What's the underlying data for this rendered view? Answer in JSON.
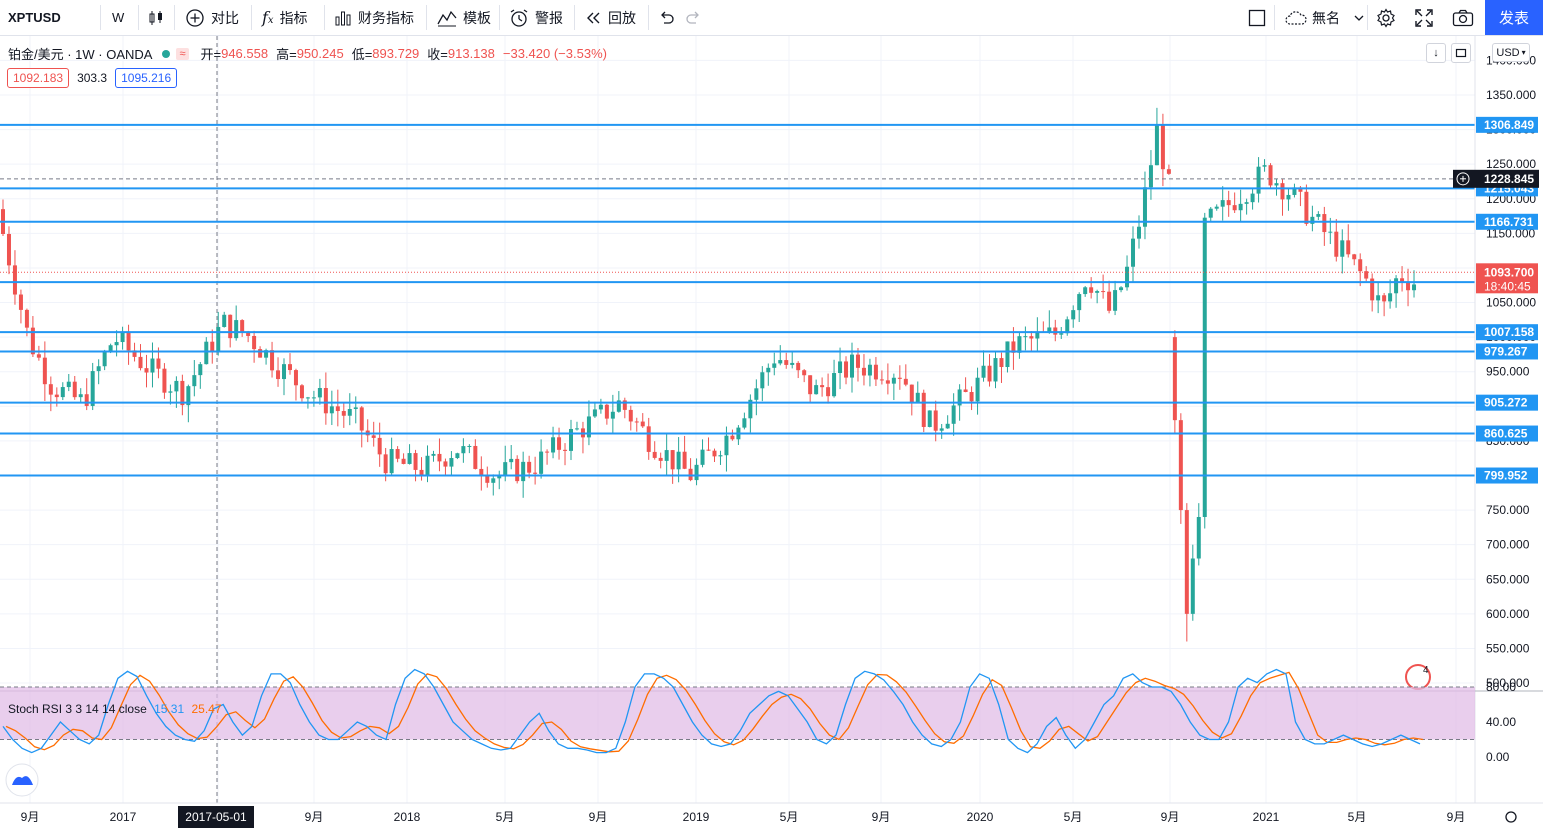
{
  "toolbar": {
    "symbol": "XPTUSD",
    "interval": "W",
    "compare_label": "对比",
    "indicators_label": "指标",
    "financials_label": "财务指标",
    "templates_label": "模板",
    "alert_label": "警报",
    "replay_label": "回放",
    "layout_name": "無名",
    "publish_label": "发表"
  },
  "legend": {
    "title": "铂金/美元 · 1W · OANDA",
    "approx": "≈",
    "open_label": "开=",
    "open": "946.558",
    "high_label": "高=",
    "high": "950.245",
    "low_label": "低=",
    "low": "893.729",
    "close_label": "收=",
    "close": "913.138",
    "change": "−33.420 (−3.53%)",
    "bid": "1092.183",
    "spread": "303.3",
    "ask": "1095.216"
  },
  "price_scale": {
    "currency": "USD",
    "ticks": [
      "1400.000",
      "1350.000",
      "1300.000",
      "1250.000",
      "1200.000",
      "1150.000",
      "1100.000",
      "1050.000",
      "1000.000",
      "950.000",
      "900.000",
      "850.000",
      "800.000",
      "750.000",
      "700.000",
      "650.000",
      "600.000",
      "550.000",
      "500.000"
    ],
    "levels": [
      {
        "label": "1306.849",
        "price": 1306.849
      },
      {
        "label": "1215.043",
        "price": 1215.043
      },
      {
        "label": "1166.731",
        "price": 1166.731
      },
      {
        "label": "1079.508",
        "price": 1079.508
      },
      {
        "label": "1007.158",
        "price": 1007.158
      },
      {
        "label": "979.267",
        "price": 979.267
      },
      {
        "label": "905.272",
        "price": 905.272
      },
      {
        "label": "860.625",
        "price": 860.625
      },
      {
        "label": "799.952",
        "price": 799.952
      }
    ],
    "crosshair_price": "1228.845",
    "last_price": "1093.700",
    "countdown": "18:40:45",
    "level_color": "#2196f3",
    "up_color": "#26a69a",
    "down_color": "#ef5350"
  },
  "time_axis": {
    "labels": [
      "9月",
      "2017",
      "5月",
      "9月",
      "2018",
      "5月",
      "9月",
      "2019",
      "5月",
      "9月",
      "2020",
      "5月",
      "9月",
      "2021",
      "5月",
      "9月"
    ],
    "crosshair_date": "2017-05-01"
  },
  "rsi": {
    "name": "Stoch RSI 3 3 14 14 close",
    "k": "15.31",
    "d": "25.47",
    "ticks": [
      "80.00",
      "40.00",
      "0.00"
    ],
    "k_color": "#2196f3",
    "d_color": "#ff6d00",
    "band_color": "#e1bee7"
  },
  "chart_data": {
    "type": "candlestick",
    "symbol": "XPTUSD",
    "interval": "1W",
    "ylim": [
      480,
      1420
    ],
    "horizontal_levels": [
      1306.849,
      1215.043,
      1166.731,
      1079.508,
      1007.158,
      979.267,
      905.272,
      860.625,
      799.952
    ],
    "series": [
      {
        "name": "Stoch RSI 3 3 14 14 close",
        "k": [
          35,
          20,
          10,
          5,
          10,
          25,
          40,
          30,
          20,
          15,
          25,
          60,
          90,
          98,
          92,
          70,
          50,
          35,
          25,
          20,
          18,
          30,
          55,
          60,
          40,
          25,
          35,
          70,
          95,
          95,
          85,
          60,
          40,
          25,
          20,
          20,
          30,
          40,
          35,
          25,
          20,
          60,
          90,
          100,
          95,
          80,
          60,
          40,
          30,
          20,
          15,
          10,
          8,
          10,
          25,
          40,
          50,
          30,
          15,
          10,
          10,
          8,
          5,
          5,
          10,
          40,
          80,
          95,
          95,
          90,
          80,
          60,
          40,
          25,
          15,
          12,
          15,
          30,
          50,
          60,
          70,
          75,
          70,
          55,
          40,
          20,
          15,
          25,
          60,
          90,
          98,
          95,
          88,
          75,
          60,
          40,
          25,
          15,
          12,
          20,
          40,
          80,
          95,
          90,
          60,
          20,
          10,
          5,
          15,
          35,
          45,
          25,
          10,
          20,
          40,
          60,
          70,
          90,
          95,
          85,
          80,
          80,
          75,
          60,
          40,
          25,
          20,
          20,
          40,
          80,
          90,
          85,
          95,
          100,
          95,
          40,
          20,
          15,
          15,
          20,
          25,
          20,
          15,
          12,
          15,
          20,
          25,
          20,
          15
        ]
      }
    ],
    "note": "Weekly OHLC candles drawn from the close sequence"
  }
}
